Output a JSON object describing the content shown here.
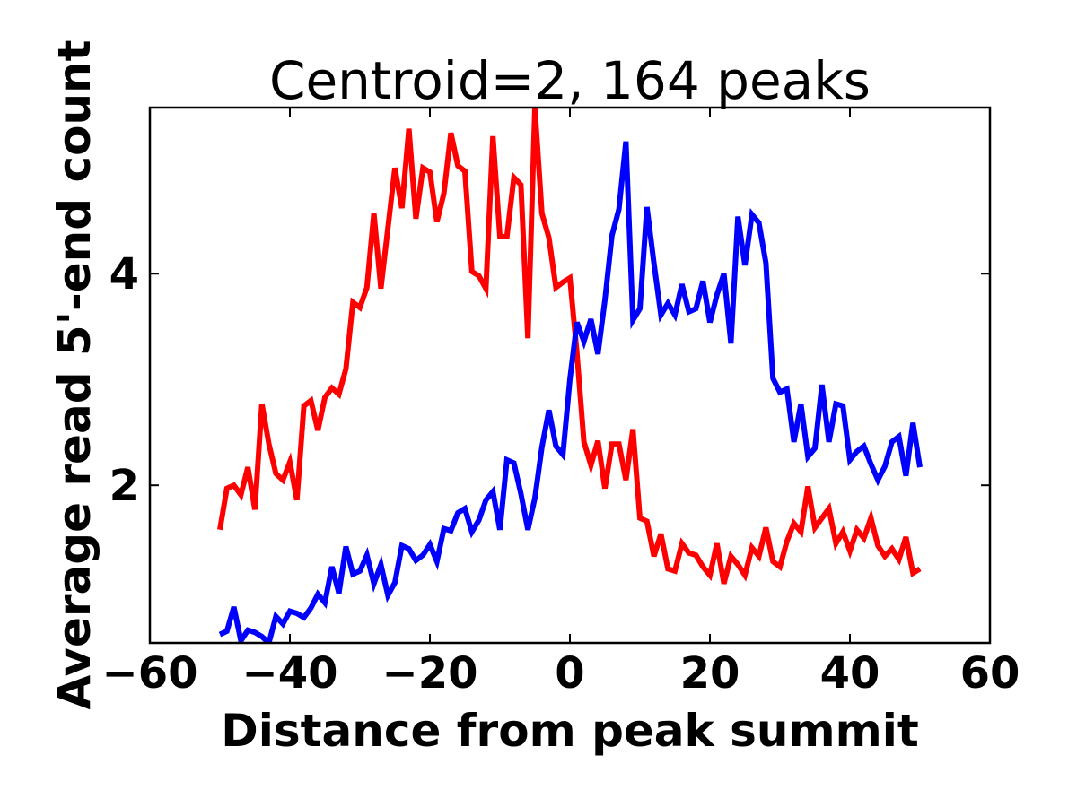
{
  "chart_data": {
    "type": "line",
    "title": "Centroid=2, 164 peaks",
    "xlabel": "Distance from peak summit",
    "ylabel": "Average read 5'-end count",
    "xlim": [
      -60,
      60
    ],
    "ylim": [
      0.51,
      5.57
    ],
    "xticks": [
      -60,
      -40,
      -20,
      0,
      20,
      40,
      60
    ],
    "xtick_labels": [
      "−60",
      "−40",
      "−20",
      "0",
      "20",
      "40",
      "60"
    ],
    "yticks": [
      2,
      4
    ],
    "ytick_labels": [
      "2",
      "4"
    ],
    "grid": false,
    "x_start": -50,
    "x_end": 50,
    "series": [
      {
        "name": "red",
        "color": "#ff0000",
        "values": [
          1.58,
          1.97,
          2.0,
          1.91,
          2.17,
          1.77,
          2.77,
          2.39,
          2.11,
          2.05,
          2.22,
          1.86,
          2.75,
          2.8,
          2.52,
          2.83,
          2.92,
          2.86,
          3.1,
          3.73,
          3.68,
          3.87,
          4.57,
          3.86,
          4.43,
          5.0,
          4.62,
          5.37,
          4.52,
          5.0,
          4.96,
          4.49,
          4.76,
          5.33,
          5.02,
          4.97,
          4.02,
          3.98,
          3.86,
          5.3,
          4.35,
          4.35,
          4.91,
          4.84,
          3.39,
          5.57,
          4.57,
          4.34,
          3.87,
          3.92,
          3.96,
          3.25,
          2.41,
          2.19,
          2.42,
          1.97,
          2.39,
          2.39,
          2.05,
          2.53,
          1.69,
          1.66,
          1.33,
          1.54,
          1.21,
          1.19,
          1.45,
          1.36,
          1.34,
          1.23,
          1.15,
          1.45,
          1.07,
          1.33,
          1.25,
          1.15,
          1.41,
          1.33,
          1.6,
          1.28,
          1.23,
          1.47,
          1.64,
          1.56,
          1.99,
          1.6,
          1.69,
          1.78,
          1.45,
          1.56,
          1.38,
          1.58,
          1.5,
          1.69,
          1.43,
          1.33,
          1.4,
          1.3,
          1.51,
          1.17,
          1.21
        ]
      },
      {
        "name": "blue",
        "color": "#0000ff",
        "values": [
          0.59,
          0.62,
          0.85,
          0.53,
          0.63,
          0.61,
          0.57,
          0.51,
          0.76,
          0.69,
          0.81,
          0.79,
          0.75,
          0.84,
          0.97,
          0.89,
          1.23,
          0.98,
          1.42,
          1.16,
          1.19,
          1.34,
          1.07,
          1.25,
          0.96,
          1.08,
          1.43,
          1.4,
          1.29,
          1.34,
          1.44,
          1.28,
          1.59,
          1.57,
          1.74,
          1.78,
          1.56,
          1.67,
          1.86,
          1.94,
          1.58,
          2.24,
          2.21,
          1.92,
          1.58,
          1.88,
          2.36,
          2.71,
          2.37,
          2.29,
          3.0,
          3.54,
          3.36,
          3.57,
          3.24,
          3.75,
          4.36,
          4.61,
          5.25,
          3.56,
          3.67,
          4.63,
          4.1,
          3.61,
          3.72,
          3.61,
          3.9,
          3.64,
          3.67,
          3.93,
          3.54,
          3.8,
          4.0,
          3.34,
          4.54,
          4.08,
          4.56,
          4.48,
          4.1,
          3.01,
          2.88,
          2.91,
          2.41,
          2.77,
          2.27,
          2.35,
          2.95,
          2.41,
          2.77,
          2.75,
          2.24,
          2.32,
          2.37,
          2.2,
          2.05,
          2.18,
          2.41,
          2.46,
          2.09,
          2.59,
          2.17
        ]
      }
    ]
  }
}
